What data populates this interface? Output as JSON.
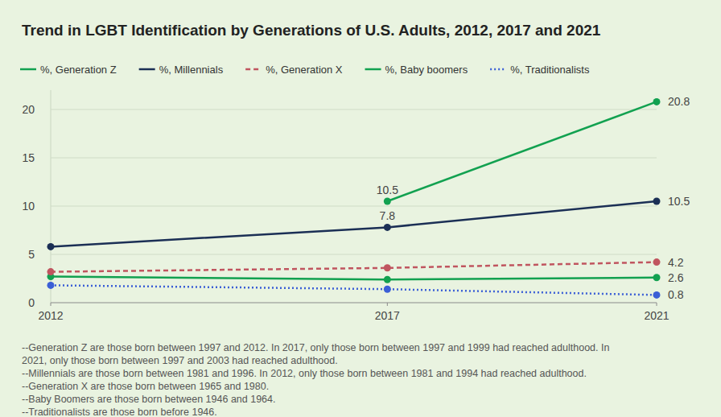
{
  "chart_data": {
    "type": "line",
    "title": "Trend in LGBT Identification by Generations of U.S. Adults, 2012, 2017 and 2021",
    "x": [
      2012,
      2017,
      2021
    ],
    "xlim": [
      2012,
      2021
    ],
    "xticks": [
      2012,
      2017,
      2021
    ],
    "ylim": [
      0,
      22
    ],
    "yticks": [
      0,
      5,
      10,
      15,
      20
    ],
    "grid": true,
    "legend": "top",
    "data_labels": true,
    "series": [
      {
        "name": "%, Generation Z",
        "color": "#12a150",
        "line_style": "solid",
        "marker": "circle",
        "values": [
          null,
          10.5,
          20.8
        ],
        "value_labels": [
          null,
          "10.5",
          "20.8"
        ]
      },
      {
        "name": "%, Millennials",
        "color": "#1b2f55",
        "line_style": "solid",
        "marker": "circle",
        "values": [
          5.8,
          7.8,
          10.5
        ],
        "value_labels": [
          null,
          "7.8",
          "10.5"
        ]
      },
      {
        "name": "%, Generation X",
        "color": "#c0555f",
        "line_style": "dashed",
        "marker": "circle",
        "values": [
          3.2,
          3.6,
          4.2
        ],
        "value_labels": [
          null,
          null,
          "4.2"
        ]
      },
      {
        "name": "%, Baby boomers",
        "color": "#12a150",
        "line_style": "solid",
        "marker": "circle",
        "values": [
          2.7,
          2.4,
          2.6
        ],
        "value_labels": [
          null,
          null,
          "2.6"
        ]
      },
      {
        "name": "%, Traditionalists",
        "color": "#3b5fd6",
        "line_style": "dotted",
        "marker": "circle",
        "values": [
          1.8,
          1.4,
          0.8
        ],
        "value_labels": [
          null,
          null,
          "0.8"
        ]
      }
    ],
    "notes": [
      "--Generation Z are those born between 1997 and 2012. In 2017, only those born between 1997 and 1999 had reached adulthood. In",
      "2021, only those born between 1997 and 2003 had reached adulthood.",
      "--Millennials are those born between 1981 and 1996. In 2012, only those born between 1981 and 1994 had reached adulthood.",
      "--Generation X are those born between 1965 and 1980.",
      "--Baby Boomers are those born between 1946 and 1964.",
      "--Traditionalists are those born before 1946."
    ]
  }
}
